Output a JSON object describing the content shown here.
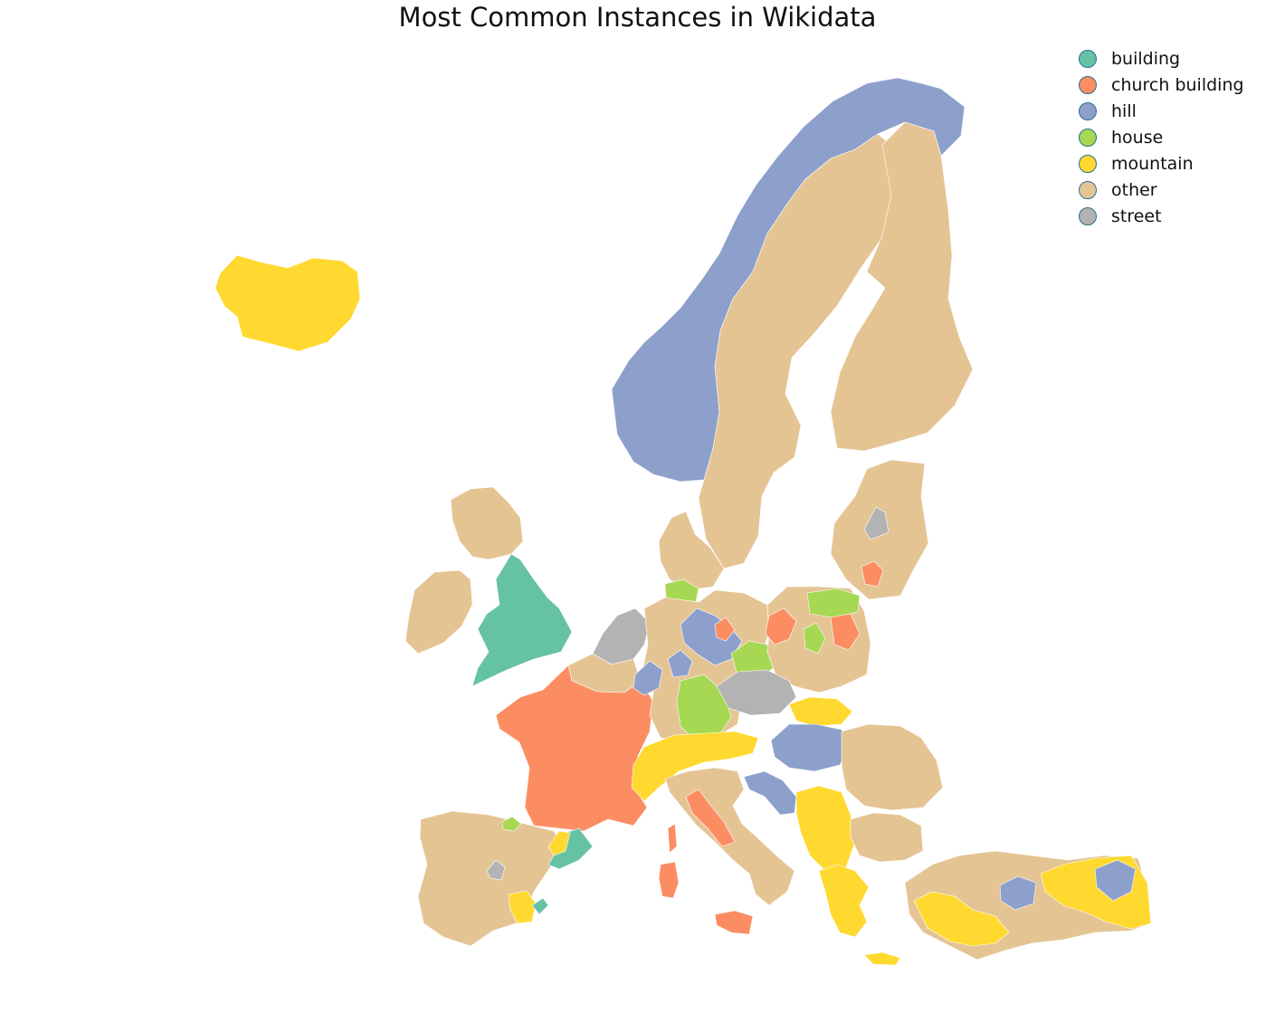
{
  "title": "Most Common Instances in Wikidata",
  "legend": [
    {
      "label": "building",
      "color": "#66c2a5"
    },
    {
      "label": "church building",
      "color": "#fc8d62"
    },
    {
      "label": "hill",
      "color": "#8da0cb"
    },
    {
      "label": "house",
      "color": "#a6d854"
    },
    {
      "label": "mountain",
      "color": "#ffd92f"
    },
    {
      "label": "other",
      "color": "#e5c494"
    },
    {
      "label": "street",
      "color": "#b3b3b3"
    }
  ],
  "regions": [
    {
      "id": "iceland",
      "category": "mountain"
    },
    {
      "id": "norway",
      "category": "hill"
    },
    {
      "id": "sweden",
      "category": "other"
    },
    {
      "id": "finland",
      "category": "other"
    },
    {
      "id": "baltics",
      "category": "other"
    },
    {
      "id": "baltics-street-spot",
      "category": "street"
    },
    {
      "id": "baltics-church-spot",
      "category": "church building"
    },
    {
      "id": "scotland",
      "category": "other"
    },
    {
      "id": "ireland",
      "category": "other"
    },
    {
      "id": "england-wales",
      "category": "building"
    },
    {
      "id": "netherlands",
      "category": "street"
    },
    {
      "id": "belgium",
      "category": "other"
    },
    {
      "id": "france",
      "category": "church building"
    },
    {
      "id": "iberia",
      "category": "other"
    },
    {
      "id": "spain-street-spot",
      "category": "street"
    },
    {
      "id": "catalonia",
      "category": "building"
    },
    {
      "id": "pyrenees",
      "category": "mountain"
    },
    {
      "id": "basque-spot",
      "category": "house"
    },
    {
      "id": "valencia-mountain",
      "category": "mountain"
    },
    {
      "id": "valencia-building",
      "category": "building"
    },
    {
      "id": "denmark",
      "category": "other"
    },
    {
      "id": "schleswig",
      "category": "house"
    },
    {
      "id": "germany",
      "category": "other"
    },
    {
      "id": "germany-north-hill",
      "category": "hill"
    },
    {
      "id": "germany-west-hill",
      "category": "hill"
    },
    {
      "id": "germany-hesse-hill",
      "category": "hill"
    },
    {
      "id": "germany-central-church",
      "category": "church building"
    },
    {
      "id": "saxony-house",
      "category": "house"
    },
    {
      "id": "bavaria-house",
      "category": "house"
    },
    {
      "id": "poland",
      "category": "other"
    },
    {
      "id": "poland-house-north",
      "category": "house"
    },
    {
      "id": "poland-house-center",
      "category": "house"
    },
    {
      "id": "poland-church",
      "category": "church building"
    },
    {
      "id": "poland-church-east",
      "category": "church building"
    },
    {
      "id": "czechia",
      "category": "street"
    },
    {
      "id": "slovakia",
      "category": "mountain"
    },
    {
      "id": "hungary",
      "category": "hill"
    },
    {
      "id": "alps",
      "category": "mountain"
    },
    {
      "id": "italy",
      "category": "other"
    },
    {
      "id": "italy-north-church",
      "category": "church building"
    },
    {
      "id": "corsica-sardinia",
      "category": "church building"
    },
    {
      "id": "sicily",
      "category": "church building"
    },
    {
      "id": "romania",
      "category": "other"
    },
    {
      "id": "croatia-coast",
      "category": "hill"
    },
    {
      "id": "balkans",
      "category": "mountain"
    },
    {
      "id": "bulgaria",
      "category": "other"
    },
    {
      "id": "greece",
      "category": "mountain"
    },
    {
      "id": "crete",
      "category": "mountain"
    },
    {
      "id": "turkey",
      "category": "other"
    },
    {
      "id": "turkey-mountain-west",
      "category": "mountain"
    },
    {
      "id": "turkey-mountain-east",
      "category": "mountain"
    },
    {
      "id": "turkey-hill-central",
      "category": "hill"
    },
    {
      "id": "turkey-hill-east",
      "category": "hill"
    }
  ]
}
